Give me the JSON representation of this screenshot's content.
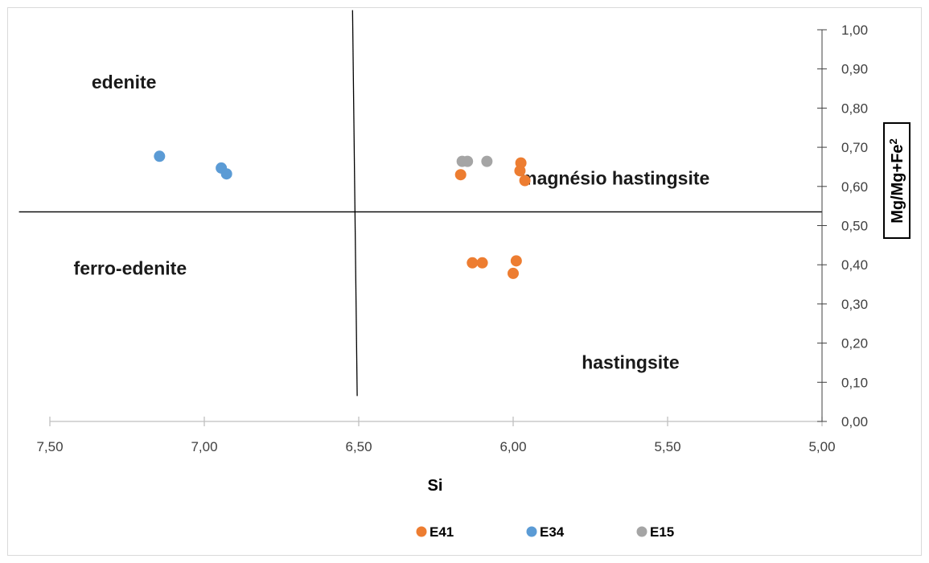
{
  "chart_data": {
    "type": "scatter",
    "title": "",
    "xlabel": "Si",
    "ylabel_main": "Mg/Mg+Fe",
    "ylabel_sup": "2",
    "xlim": [
      7.5,
      5.0
    ],
    "ylim": [
      0.0,
      1.0
    ],
    "x_reversed": true,
    "y_axis_side": "right",
    "x_ticks": [
      7.5,
      7.0,
      6.5,
      6.0,
      5.5,
      5.0
    ],
    "x_tick_labels": [
      "7,50",
      "7,00",
      "6,50",
      "6,00",
      "5,50",
      "5,00"
    ],
    "y_ticks": [
      0.0,
      0.1,
      0.2,
      0.3,
      0.4,
      0.5,
      0.6,
      0.7,
      0.8,
      0.9,
      1.0
    ],
    "y_tick_labels": [
      "0,00",
      "0,10",
      "0,20",
      "0,30",
      "0,40",
      "0,50",
      "0,60",
      "0,70",
      "0,80",
      "0,90",
      "1,00"
    ],
    "grid": false,
    "legend_position": "bottom",
    "series": [
      {
        "name": "E41",
        "color": "#ed7d31",
        "points": [
          {
            "x": 6.17,
            "y": 0.63
          },
          {
            "x": 5.975,
            "y": 0.66
          },
          {
            "x": 5.978,
            "y": 0.64
          },
          {
            "x": 5.962,
            "y": 0.615
          },
          {
            "x": 6.132,
            "y": 0.405
          },
          {
            "x": 6.1,
            "y": 0.405
          },
          {
            "x": 5.99,
            "y": 0.41
          },
          {
            "x": 6.0,
            "y": 0.378
          }
        ]
      },
      {
        "name": "E34",
        "color": "#5b9bd5",
        "points": [
          {
            "x": 7.145,
            "y": 0.677
          },
          {
            "x": 6.945,
            "y": 0.647
          },
          {
            "x": 6.928,
            "y": 0.632
          }
        ]
      },
      {
        "name": "E15",
        "color": "#a5a5a5",
        "points": [
          {
            "x": 6.165,
            "y": 0.664
          },
          {
            "x": 6.148,
            "y": 0.664
          },
          {
            "x": 6.085,
            "y": 0.664
          }
        ]
      }
    ],
    "divider_lines": [
      {
        "x1": 6.52,
        "y1": 1.05,
        "x2": 6.505,
        "y2": 0.065
      },
      {
        "x1": 7.6,
        "y1": 0.535,
        "x2": 5.0,
        "y2": 0.535
      }
    ],
    "region_labels": [
      {
        "text": "edenite",
        "x": 7.26,
        "y": 0.85
      },
      {
        "text": "magnésio hastingsite",
        "x": 5.67,
        "y": 0.605
      },
      {
        "text": "ferro-edenite",
        "x": 7.24,
        "y": 0.375
      },
      {
        "text": "hastingsite",
        "x": 5.62,
        "y": 0.135
      }
    ]
  }
}
